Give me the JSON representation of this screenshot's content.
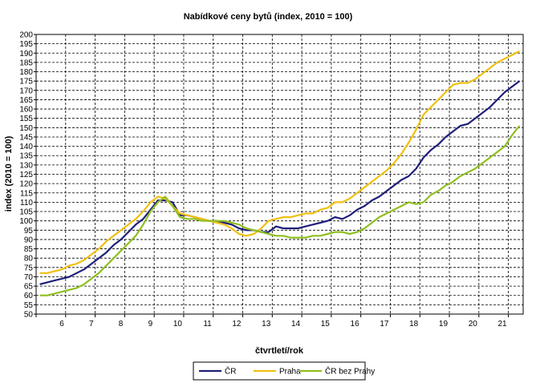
{
  "chart_data": {
    "type": "line",
    "title": "Nabídkové ceny bytů (index, 2010 = 100)",
    "xlabel": "čtvrtletí/rok",
    "ylabel": "index (2010 = 100)",
    "ylim": [
      50,
      200
    ],
    "ytick_step": 5,
    "grid": true,
    "legend_position": "bottom",
    "x_tick_labels": [
      "6",
      "7",
      "8",
      "9",
      "10",
      "11",
      "12",
      "13",
      "14",
      "15",
      "16",
      "17",
      "18",
      "19",
      "20",
      "21"
    ],
    "x": [
      "5Q1",
      "5Q2",
      "5Q3",
      "5Q4",
      "6Q1",
      "6Q2",
      "6Q3",
      "6Q4",
      "7Q1",
      "7Q2",
      "7Q3",
      "7Q4",
      "8Q1",
      "8Q2",
      "8Q3",
      "8Q4",
      "9Q1",
      "9Q2",
      "9Q3",
      "9Q4",
      "10Q1",
      "10Q2",
      "10Q3",
      "10Q4",
      "11Q1",
      "11Q2",
      "11Q3",
      "11Q4",
      "12Q1",
      "12Q2",
      "12Q3",
      "12Q4",
      "13Q1",
      "13Q2",
      "13Q3",
      "13Q4",
      "14Q1",
      "14Q2",
      "14Q3",
      "14Q4",
      "15Q1",
      "15Q2",
      "15Q3",
      "15Q4",
      "16Q1",
      "16Q2",
      "16Q3",
      "16Q4",
      "17Q1",
      "17Q2",
      "17Q3",
      "17Q4",
      "18Q1",
      "18Q2",
      "18Q3",
      "18Q4",
      "19Q1",
      "19Q2",
      "19Q3",
      "19Q4",
      "20Q1",
      "20Q2",
      "20Q3",
      "20Q4",
      "21Q1",
      "21Q2"
    ],
    "series": [
      {
        "name": "ČR",
        "color": "#1f1f7a",
        "values": [
          66,
          67,
          68,
          69,
          70,
          72,
          74,
          77,
          80,
          83,
          87,
          90,
          94,
          98,
          101,
          106,
          111,
          111,
          110,
          103,
          103,
          102,
          101,
          100,
          100,
          99,
          98,
          96,
          95,
          95,
          94,
          94,
          97,
          96,
          96,
          96,
          97,
          98,
          99,
          100,
          102,
          101,
          103,
          106,
          108,
          111,
          113,
          116,
          119,
          122,
          124,
          128,
          134,
          138,
          141,
          145,
          148,
          151,
          152,
          155,
          158,
          161,
          165,
          169,
          172,
          175
        ]
      },
      {
        "name": "Praha",
        "color": "#f0c010",
        "values": [
          72,
          72,
          73,
          74,
          76,
          77,
          79,
          82,
          85,
          89,
          92,
          95,
          98,
          101,
          105,
          110,
          113,
          112,
          108,
          104,
          103,
          102,
          101,
          100,
          99,
          98,
          96,
          93,
          92,
          93,
          96,
          100,
          101,
          102,
          102,
          103,
          104,
          104,
          106,
          107,
          110,
          110,
          112,
          115,
          118,
          121,
          124,
          127,
          131,
          136,
          142,
          149,
          157,
          161,
          165,
          169,
          173,
          174,
          174,
          176,
          179,
          182,
          185,
          187,
          189,
          191
        ]
      },
      {
        "name": "ČR bez Prahy",
        "color": "#8fbf1f",
        "values": [
          60,
          60,
          61,
          62,
          63,
          64,
          66,
          69,
          72,
          76,
          80,
          84,
          88,
          92,
          98,
          105,
          110,
          113,
          108,
          102,
          101,
          101,
          100,
          100,
          100,
          100,
          99,
          98,
          96,
          95,
          94,
          93,
          92,
          92,
          91,
          91,
          91,
          92,
          92,
          93,
          94,
          94,
          93,
          94,
          96,
          99,
          102,
          104,
          106,
          108,
          110,
          109,
          110,
          114,
          116,
          119,
          121,
          124,
          126,
          128,
          131,
          134,
          137,
          140,
          146,
          151
        ]
      }
    ]
  }
}
